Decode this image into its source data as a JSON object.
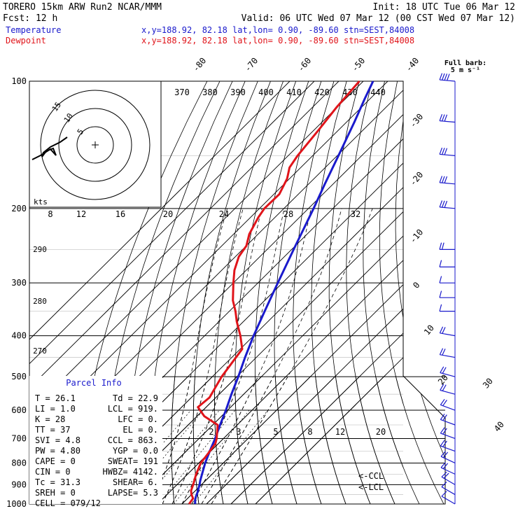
{
  "header": {
    "line1_left": "TORERO  15km ARW   Run2    NCAR/MMM",
    "line1_right": "Init: 18 UTC Tue 06 Mar 12",
    "line2_left": "Fcst:   12 h",
    "line2_right": "Valid: 06 UTC Wed 07 Mar 12 (00 CST Wed 07 Mar 12)",
    "temp_label": "Temperature",
    "temp_info": "x,y=188.92, 82.18   lat,lon=  0.90, -89.60  stn=SEST,84008",
    "dew_label": "Dewpoint",
    "dew_info": "x,y=188.92, 82.18   lat,lon=  0.90, -89.60  stn=SEST,84008"
  },
  "colors": {
    "temperature": "#1a1acc",
    "dewpoint": "#e0141a",
    "wind_barbs": "#1a1acc",
    "isobars": "#000000",
    "isotherms": "#000000"
  },
  "wind_key": {
    "title": "Full barb:",
    "value": "5 m s⁻¹"
  },
  "hodograph": {
    "units": "kts",
    "ring_labels": [
      "15",
      "10",
      "5"
    ]
  },
  "parcel_info": {
    "title": "Parcel Info",
    "rows": [
      {
        "left": "T  =    26.1",
        "right": "Td =  22.9"
      },
      {
        "left": "LI =     1.0",
        "right": "LCL =  919."
      },
      {
        "left": "K  =      28",
        "right": "LFC =    0."
      },
      {
        "left": "TT =      37",
        "right": "EL  =    0."
      },
      {
        "left": "SVI =    4.8",
        "right": "CCL =  863."
      },
      {
        "left": "PW =    4.80",
        "right": "YGP =   0.0"
      },
      {
        "left": "CAPE =     0",
        "right": "SWEAT=  191"
      },
      {
        "left": "CIN =      0",
        "right": "HWBZ= 4142."
      },
      {
        "left": "Tc =    31.3",
        "right": "SHEAR=    6."
      },
      {
        "left": "SREH =     0",
        "right": "LAPSE=   5.3"
      },
      {
        "left": "CELL = 079/12",
        "right": ""
      }
    ]
  },
  "chart_data": {
    "type": "line",
    "title": "",
    "ylabel": "",
    "xlabel": "",
    "y_scale": "log (pressure, hPa)",
    "pressure_levels": [
      100,
      200,
      300,
      400,
      500,
      600,
      700,
      800,
      900,
      1000
    ],
    "isotherm_labels": [
      "-80",
      "-70",
      "-60",
      "-50",
      "-40",
      "-30",
      "-20",
      "-10",
      "0",
      "10",
      "20",
      "30",
      "40"
    ],
    "theta_labels": [
      "370",
      "380",
      "390",
      "400",
      "410",
      "420",
      "430",
      "440"
    ],
    "theta_labels_low": [
      "290",
      "280",
      "270"
    ],
    "mixing_ratio_labels_upper": [
      "8",
      "12",
      "16",
      "20",
      "24",
      "28",
      "32"
    ],
    "mixing_ratio_labels_lower": [
      "2",
      "3",
      "5",
      "8",
      "12",
      "20"
    ],
    "lcl_marker": "<-LCL",
    "ccl_marker": "<-CCL",
    "series": [
      {
        "name": "Temperature",
        "points": [
          [
            1000,
            25.4
          ],
          [
            980,
            23.8
          ],
          [
            960,
            22.6
          ],
          [
            940,
            21.6
          ],
          [
            920,
            20.4
          ],
          [
            900,
            19.2
          ],
          [
            880,
            17.8
          ],
          [
            850,
            15.9
          ],
          [
            800,
            12.6
          ],
          [
            750,
            9.6
          ],
          [
            700,
            6.6
          ],
          [
            650,
            3.0
          ],
          [
            600,
            -0.7
          ],
          [
            550,
            -5.0
          ],
          [
            500,
            -9.4
          ],
          [
            450,
            -14.6
          ],
          [
            400,
            -20.0
          ],
          [
            350,
            -25.6
          ],
          [
            300,
            -31.9
          ],
          [
            250,
            -39.2
          ],
          [
            200,
            -47.9
          ],
          [
            175,
            -53.4
          ],
          [
            150,
            -59.5
          ],
          [
            125,
            -66.8
          ],
          [
            110,
            -72.2
          ],
          [
            100,
            -76.0
          ]
        ]
      },
      {
        "name": "Dewpoint",
        "points": [
          [
            1000,
            22.9
          ],
          [
            970,
            22.2
          ],
          [
            950,
            20.0
          ],
          [
            930,
            18.2
          ],
          [
            900,
            16.6
          ],
          [
            850,
            13.5
          ],
          [
            800,
            10.8
          ],
          [
            760,
            9.9
          ],
          [
            720,
            8.8
          ],
          [
            700,
            7.2
          ],
          [
            650,
            2.0
          ],
          [
            620,
            -7.0
          ],
          [
            590,
            -13.4
          ],
          [
            560,
            -12.6
          ],
          [
            500,
            -16.2
          ],
          [
            430,
            -19.2
          ],
          [
            400,
            -25.4
          ],
          [
            370,
            -32.8
          ],
          [
            350,
            -37.5
          ],
          [
            330,
            -43.0
          ],
          [
            300,
            -50.0
          ],
          [
            280,
            -54.8
          ],
          [
            260,
            -58.6
          ],
          [
            245,
            -60.0
          ],
          [
            230,
            -63.6
          ],
          [
            210,
            -66.8
          ],
          [
            200,
            -68.0
          ],
          [
            185,
            -67.8
          ],
          [
            170,
            -71.0
          ],
          [
            160,
            -74.6
          ],
          [
            150,
            -76.2
          ],
          [
            130,
            -78.2
          ],
          [
            115,
            -80.2
          ],
          [
            100,
            -81.6
          ]
        ]
      }
    ],
    "wind_barbs": [
      {
        "p": 100,
        "spd": 18,
        "dir": 95
      },
      {
        "p": 125,
        "spd": 15,
        "dir": 95
      },
      {
        "p": 150,
        "spd": 15,
        "dir": 95
      },
      {
        "p": 175,
        "spd": 15,
        "dir": 95
      },
      {
        "p": 200,
        "spd": 15,
        "dir": 95
      },
      {
        "p": 250,
        "spd": 10,
        "dir": 90
      },
      {
        "p": 275,
        "spd": 5,
        "dir": 90
      },
      {
        "p": 300,
        "spd": 5,
        "dir": 90
      },
      {
        "p": 325,
        "spd": 5,
        "dir": 90
      },
      {
        "p": 350,
        "spd": 5,
        "dir": 90
      },
      {
        "p": 400,
        "spd": 10,
        "dir": 100
      },
      {
        "p": 450,
        "spd": 10,
        "dir": 100
      },
      {
        "p": 500,
        "spd": 10,
        "dir": 105
      },
      {
        "p": 550,
        "spd": 10,
        "dir": 105
      },
      {
        "p": 600,
        "spd": 10,
        "dir": 110
      },
      {
        "p": 650,
        "spd": 10,
        "dir": 110
      },
      {
        "p": 700,
        "spd": 10,
        "dir": 110
      },
      {
        "p": 750,
        "spd": 10,
        "dir": 110
      },
      {
        "p": 800,
        "spd": 10,
        "dir": 115
      },
      {
        "p": 850,
        "spd": 10,
        "dir": 115
      },
      {
        "p": 900,
        "spd": 10,
        "dir": 120
      },
      {
        "p": 950,
        "spd": 5,
        "dir": 120
      },
      {
        "p": 1000,
        "spd": 5,
        "dir": 120
      }
    ]
  }
}
